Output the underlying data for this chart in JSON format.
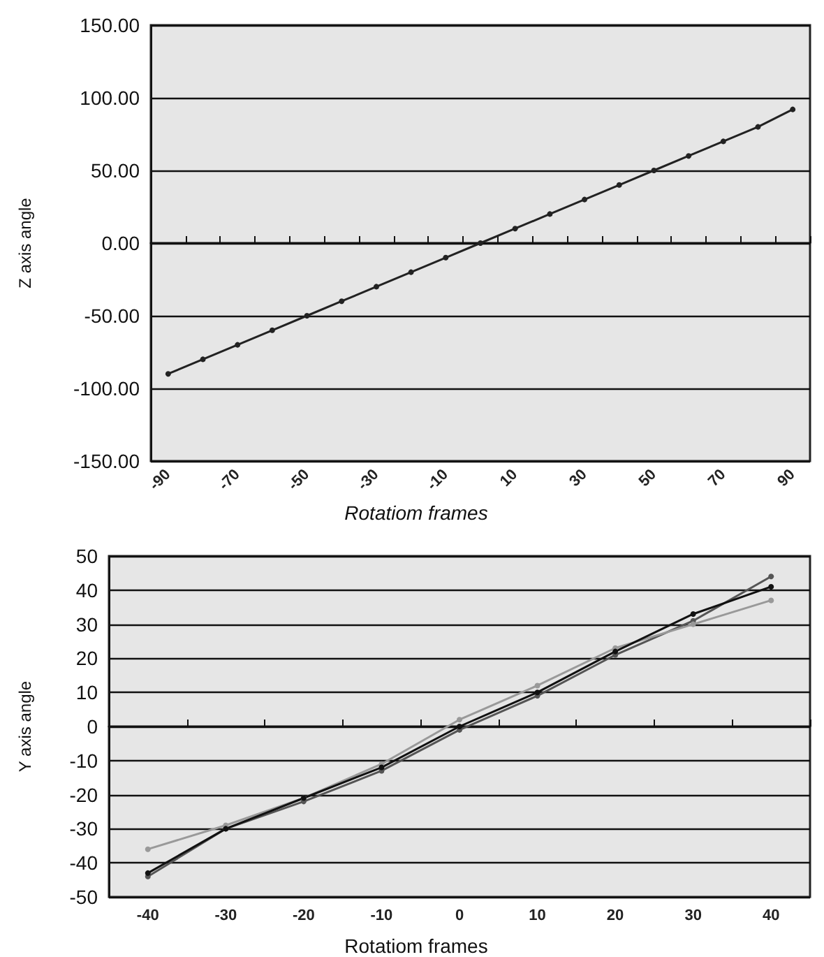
{
  "chart_data": [
    {
      "type": "line",
      "xlabel": "Rotatiom frames",
      "ylabel": "Z axis angle",
      "categories": [
        "-90",
        null,
        "-70",
        null,
        "-50",
        null,
        "-30",
        null,
        "-10",
        null,
        "10",
        null,
        "30",
        null,
        "50",
        null,
        "70",
        null,
        "90"
      ],
      "series": [
        {
          "color": "#222222",
          "values": [
            -90,
            -80,
            -70,
            -60,
            -50,
            -40,
            -30,
            -20,
            -10,
            0,
            10,
            20,
            30,
            40,
            50,
            60,
            70,
            80,
            92
          ]
        }
      ],
      "ylim": [
        -150,
        150
      ],
      "yticks": [
        {
          "value": -150,
          "label": "-150.00"
        },
        {
          "value": -100,
          "label": "-100.00"
        },
        {
          "value": -50,
          "label": "-50.00"
        },
        {
          "value": 0,
          "label": "0.00"
        },
        {
          "value": 50,
          "label": "50.00"
        },
        {
          "value": 100,
          "label": "100.00"
        },
        {
          "value": 150,
          "label": "150.00"
        }
      ],
      "grid": "y",
      "marker": "circle",
      "line_style": "solid"
    },
    {
      "type": "line",
      "xlabel": "Rotatiom frames",
      "ylabel": "Y axis angle",
      "categories": [
        "-40",
        "-30",
        "-20",
        "-10",
        "0",
        "10",
        "20",
        "30",
        "40"
      ],
      "series": [
        {
          "color": "#555555",
          "values": [
            -44,
            -30,
            -22,
            -13,
            -1,
            9,
            21,
            31,
            44
          ]
        },
        {
          "color": "#999999",
          "values": [
            -36,
            -29,
            -21,
            -11,
            2,
            12,
            23,
            30,
            37
          ]
        },
        {
          "color": "#111111",
          "values": [
            -43,
            -30,
            -21,
            -12,
            0,
            10,
            22,
            33,
            41
          ]
        }
      ],
      "ylim": [
        -50,
        50
      ],
      "yticks": [
        -50,
        -40,
        -30,
        -20,
        -10,
        0,
        10,
        20,
        30,
        40,
        50
      ],
      "grid": "y",
      "marker": "circle",
      "line_style": "solid"
    }
  ]
}
